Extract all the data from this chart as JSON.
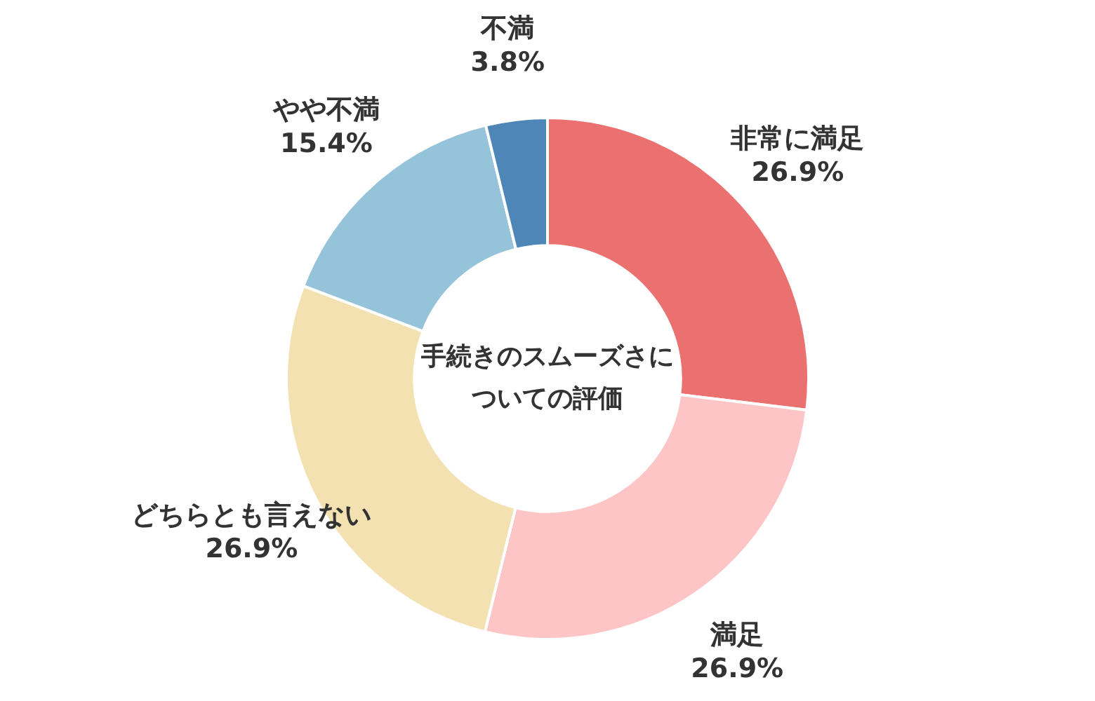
{
  "chart_data": {
    "type": "donut",
    "title": "手続きのスムーズさについての評価",
    "categories": [
      "非常に満足",
      "満足",
      "どちらとも言えない",
      "やや不満",
      "不満"
    ],
    "values": [
      26.9,
      26.9,
      26.9,
      15.4,
      3.8
    ],
    "value_labels": [
      "26.9%",
      "26.9%",
      "26.9%",
      "15.4%",
      "3.8%"
    ],
    "colors": [
      "#eb7070",
      "#fec5c7",
      "#f3e1b1",
      "#95c3da",
      "#4e86b8"
    ],
    "legend": false
  }
}
